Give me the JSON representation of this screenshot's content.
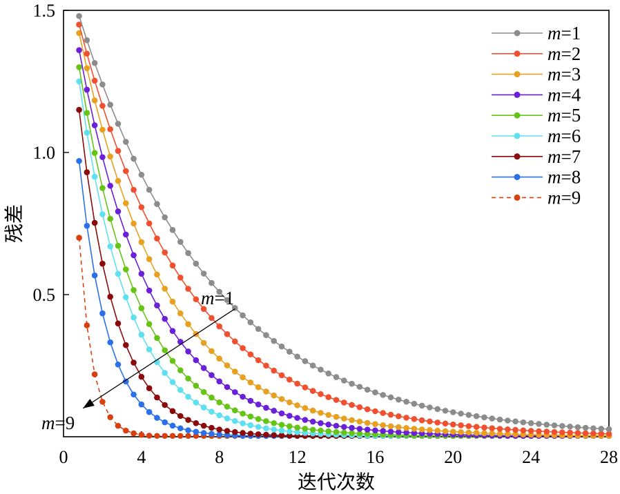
{
  "chart_data": {
    "type": "line",
    "title": "",
    "xlabel": "迭代次数",
    "ylabel": "残差",
    "xlim": [
      0,
      28
    ],
    "ylim": [
      0,
      1.5
    ],
    "x_ticks": [
      "0",
      "4",
      "8",
      "12",
      "16",
      "20",
      "24",
      "28"
    ],
    "y_ticks": [
      "0.5",
      "1.0",
      "1.5"
    ],
    "x_step": 0.4,
    "x_start": 0.8,
    "x_end": 28,
    "grid": false,
    "legend_position": "top-right",
    "series": [
      {
        "name": "m=1",
        "var": "m",
        "eq": "=1",
        "color": "#8c8c8c",
        "style": "solid",
        "y0": 1.48,
        "decay": 0.148
      },
      {
        "name": "m=2",
        "var": "m",
        "eq": "=2",
        "color": "#f05030",
        "style": "solid",
        "y0": 1.45,
        "decay": 0.183
      },
      {
        "name": "m=3",
        "var": "m",
        "eq": "=3",
        "color": "#e8a020",
        "style": "solid",
        "y0": 1.42,
        "decay": 0.228
      },
      {
        "name": "m=4",
        "var": "m",
        "eq": "=4",
        "color": "#6a1fd8",
        "style": "solid",
        "y0": 1.36,
        "decay": 0.27
      },
      {
        "name": "m=5",
        "var": "m",
        "eq": "=5",
        "color": "#66c416",
        "style": "solid",
        "y0": 1.3,
        "decay": 0.33
      },
      {
        "name": "m=6",
        "var": "m",
        "eq": "=6",
        "color": "#5ee0f0",
        "style": "solid",
        "y0": 1.25,
        "decay": 0.39
      },
      {
        "name": "m=7",
        "var": "m",
        "eq": "=7",
        "color": "#8b0a0a",
        "style": "solid",
        "y0": 1.15,
        "decay": 0.53
      },
      {
        "name": "m=8",
        "var": "m",
        "eq": "=8",
        "color": "#2a70e8",
        "style": "solid",
        "y0": 0.97,
        "decay": 0.67
      },
      {
        "name": "m=9",
        "var": "m",
        "eq": "=9",
        "color": "#d84010",
        "style": "dashed",
        "y0": 0.7,
        "decay": 1.45
      }
    ],
    "annotation": {
      "top_var": "m",
      "top_eq": "=1",
      "bottom_var": "m",
      "bottom_eq": "=9",
      "arrow_from": [
        8.8,
        0.45
      ],
      "arrow_to": [
        1.0,
        0.1
      ]
    }
  }
}
